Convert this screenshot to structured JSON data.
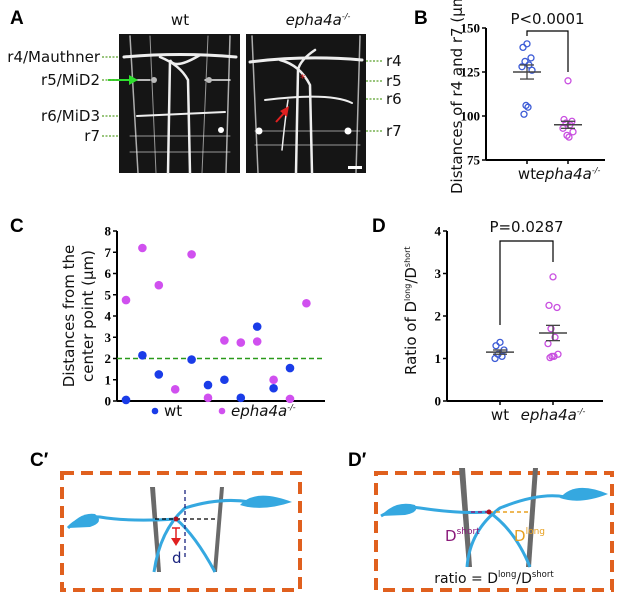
{
  "panel_a": {
    "label": "A",
    "wt_title": "wt",
    "mut_title": "epha4a",
    "mut_sup": "-/-",
    "left_labels": [
      "r4/Mauthner",
      "r5/MiD2",
      "r6/MiD3",
      "r7"
    ],
    "right_labels": [
      "r4",
      "r5",
      "r6",
      "r7"
    ],
    "colors": {
      "guide": "#5aa02c",
      "green_arrow": "#2ee02e",
      "red_arrow": "#e02020"
    }
  },
  "chart_data": [
    {
      "panel": "B",
      "type": "scatter",
      "ylabel": "Distances of r4 and r7 (μm)",
      "ylim": [
        75,
        150
      ],
      "yticks": [
        "75",
        "100",
        "125",
        "150"
      ],
      "categories": [
        "wt",
        "epha4a"
      ],
      "category_sup": [
        "",
        "-/-"
      ],
      "annotation": "P<0.0001",
      "series": [
        {
          "values": [
            141,
            139,
            133,
            131,
            129,
            128,
            126,
            106,
            105,
            101
          ],
          "mean": 125,
          "sem": [
            121,
            129
          ],
          "color": "#3c5bd6"
        },
        {
          "values": [
            120,
            98,
            97,
            96,
            95,
            93,
            91,
            89,
            88
          ],
          "mean": 95,
          "sem": [
            93,
            97
          ],
          "color": "#c94fe0"
        }
      ]
    },
    {
      "panel": "C",
      "type": "scatter",
      "ylabel_lines": [
        "Distances from the",
        "center point (μm)"
      ],
      "ylim": [
        0,
        8
      ],
      "yticks": [
        "0",
        "1",
        "2",
        "3",
        "4",
        "5",
        "6",
        "7",
        "8"
      ],
      "threshold": 2,
      "threshold_color": "#2a9a1a",
      "legend": [
        {
          "label": "wt",
          "sup": "",
          "color": "#1a3ce8"
        },
        {
          "label": "epha4a",
          "sup": "-/-",
          "color": "#d050ef"
        }
      ],
      "legend_position": "bottom",
      "series": [
        {
          "name": "wt",
          "color": "#1a3ce8",
          "points": [
            [
              1,
              0.05
            ],
            [
              2,
              2.15
            ],
            [
              3,
              1.25
            ],
            [
              5,
              1.95
            ],
            [
              6,
              0.75
            ],
            [
              7,
              1.0
            ],
            [
              8,
              0.15
            ],
            [
              9,
              3.5
            ],
            [
              10,
              0.6
            ],
            [
              11,
              1.55
            ]
          ]
        },
        {
          "name": "epha4a-/-",
          "color": "#d050ef",
          "points": [
            [
              1,
              4.75
            ],
            [
              2,
              7.2
            ],
            [
              3,
              5.45
            ],
            [
              4,
              0.55
            ],
            [
              5,
              6.9
            ],
            [
              6,
              0.15
            ],
            [
              7,
              2.85
            ],
            [
              8,
              2.75
            ],
            [
              9,
              2.8
            ],
            [
              10,
              1.0
            ],
            [
              11,
              0.1
            ],
            [
              12,
              4.6
            ]
          ]
        }
      ]
    },
    {
      "panel": "D",
      "type": "scatter",
      "ylabel": "Ratio of D",
      "ylabel_sup1": "long",
      "ylabel_mid": "/D",
      "ylabel_sup2": "short",
      "ylim": [
        0,
        4
      ],
      "yticks": [
        "0",
        "1",
        "2",
        "3",
        "4"
      ],
      "categories": [
        "wt",
        "epha4a"
      ],
      "category_sup": [
        "",
        "-/-"
      ],
      "annotation": "P=0.0287",
      "series": [
        {
          "values": [
            1.38,
            1.3,
            1.2,
            1.1,
            1.05,
            1.0
          ],
          "mean": 1.15,
          "sem": [
            1.1,
            1.2
          ],
          "color": "#3c5bd6"
        },
        {
          "values": [
            2.92,
            2.25,
            2.2,
            1.7,
            1.5,
            1.35,
            1.1,
            1.05,
            1.05,
            1.02
          ],
          "mean": 1.6,
          "sem": [
            1.42,
            1.78
          ],
          "color": "#c94fe0"
        }
      ]
    }
  ],
  "panel_c_prime": {
    "label": "C′",
    "d_label": "d"
  },
  "panel_d_prime": {
    "label": "D′",
    "dshort": "D",
    "dshort_sup": "short",
    "dlong": "D",
    "dlong_sup": "long",
    "ratio_prefix": "ratio = D",
    "ratio_sup1": "long",
    "ratio_mid": "/D",
    "ratio_sup2": "short"
  },
  "colors": {
    "box": "#e0601e",
    "cell": "#35a8e0",
    "axon": "#707070",
    "dshort": "#8a1a7a",
    "dlong": "#e8a020"
  }
}
